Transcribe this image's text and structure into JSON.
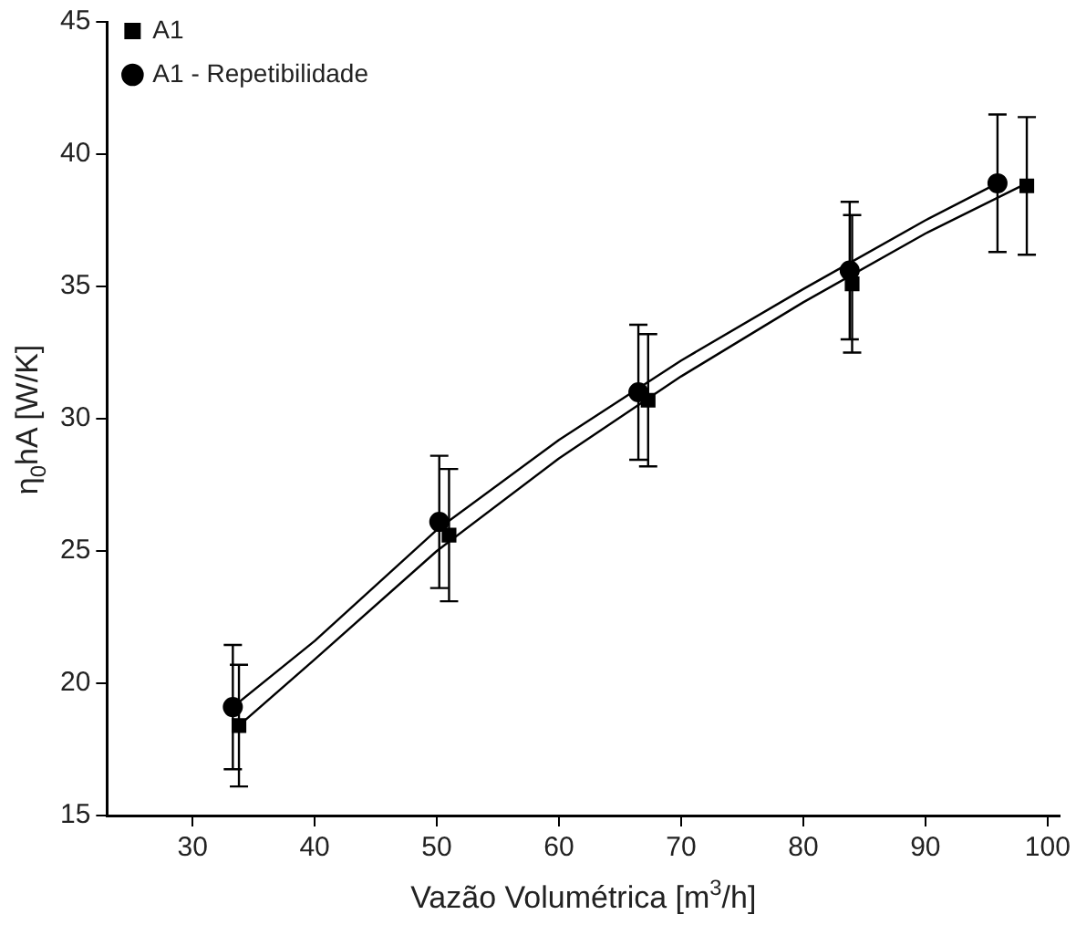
{
  "chart_data": {
    "type": "scatter",
    "xlabel": "Vazão Volumétrica [m$^{3}$/h]",
    "ylabel": "η$_{0}$hA [W/K]",
    "xlim": [
      23,
      101
    ],
    "xticks": [
      30,
      40,
      50,
      60,
      70,
      80,
      90,
      100
    ],
    "ylim": [
      15,
      45
    ],
    "yticks": [
      15,
      20,
      25,
      30,
      35,
      40,
      45
    ],
    "grid": false,
    "legend": "top left",
    "series": [
      {
        "name": "A1",
        "color": "#000000",
        "marker": "square",
        "x": [
          33.8,
          51,
          67.3,
          84,
          98.3
        ],
        "values": [
          18.4,
          25.6,
          30.7,
          35.1,
          38.8
        ],
        "errors": [
          2.3,
          2.5,
          2.5,
          2.6,
          2.6
        ]
      },
      {
        "name": "A1 - Repetibilidade",
        "color": "#000000",
        "marker": "circle",
        "x": [
          33.3,
          50.2,
          66.5,
          83.8,
          95.9
        ],
        "values": [
          19.1,
          26.1,
          31.0,
          35.6,
          38.9
        ],
        "errors": [
          2.35,
          2.5,
          2.55,
          2.6,
          2.6
        ]
      },
      {
        "type": "line",
        "color": "#000000",
        "marker": "none",
        "x": [
          33.8,
          40,
          50,
          60,
          70,
          80,
          90,
          98.3
        ],
        "values": [
          18.4,
          20.9,
          25.0,
          28.5,
          31.6,
          34.4,
          37.0,
          38.9
        ]
      },
      {
        "type": "line",
        "color": "#000000",
        "marker": "none",
        "x": [
          33.3,
          40,
          50,
          60,
          70,
          80,
          90,
          95.9
        ],
        "values": [
          19.1,
          21.6,
          25.8,
          29.2,
          32.2,
          34.9,
          37.5,
          38.9
        ]
      }
    ]
  }
}
